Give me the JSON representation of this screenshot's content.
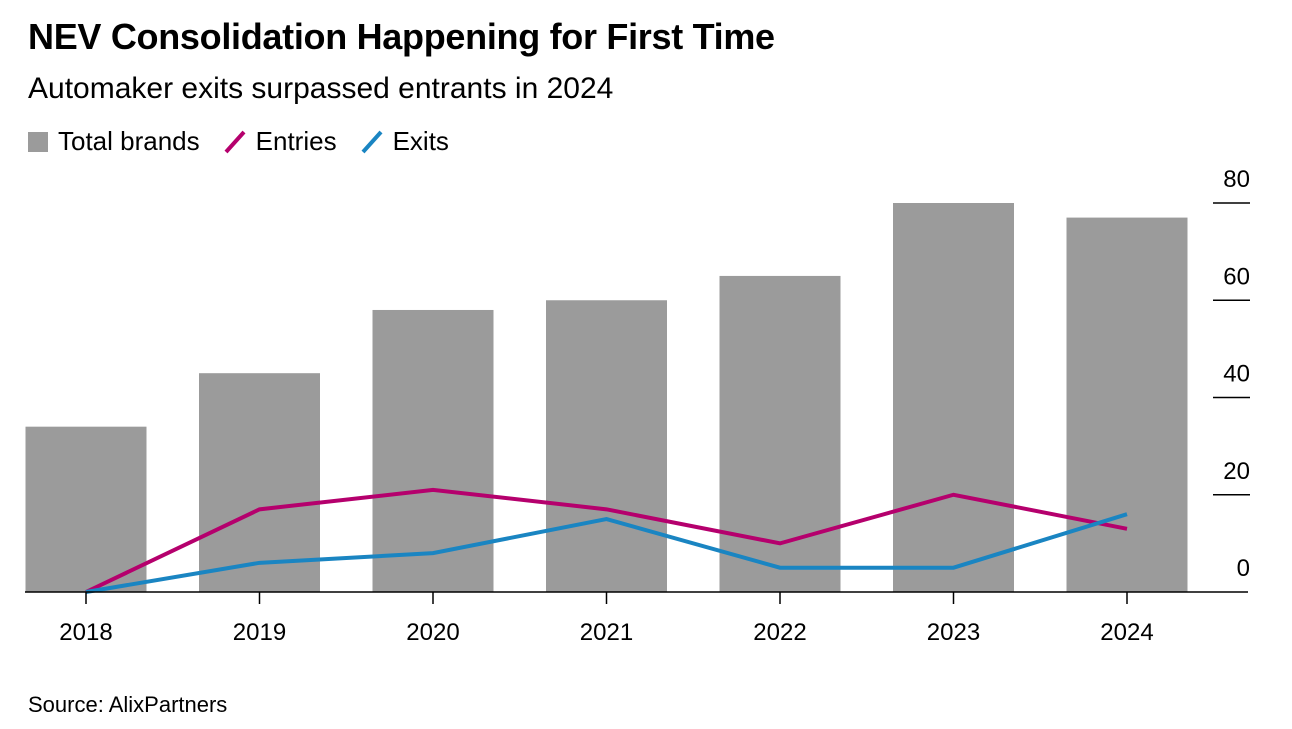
{
  "title": "NEV Consolidation Happening for First Time",
  "subtitle": "Automaker exits surpassed entrants in 2024",
  "legend": [
    {
      "label": "Total brands",
      "kind": "box",
      "color": "#9b9b9b"
    },
    {
      "label": "Entries",
      "kind": "line",
      "color": "#b5006d"
    },
    {
      "label": "Exits",
      "kind": "line",
      "color": "#1a85c2"
    }
  ],
  "source": "Source: AlixPartners",
  "chart_data": {
    "type": "bar",
    "categories": [
      "2018",
      "2019",
      "2020",
      "2021",
      "2022",
      "2023",
      "2024"
    ],
    "series": [
      {
        "name": "Total brands",
        "type": "bar",
        "color": "#9b9b9b",
        "values": [
          34,
          45,
          58,
          60,
          65,
          80,
          77
        ]
      },
      {
        "name": "Entries",
        "type": "line",
        "color": "#b5006d",
        "values": [
          0,
          17,
          21,
          17,
          10,
          20,
          13
        ]
      },
      {
        "name": "Exits",
        "type": "line",
        "color": "#1a85c2",
        "values": [
          0,
          6,
          8,
          15,
          5,
          5,
          16
        ]
      }
    ],
    "y_ticks": [
      "0",
      "20",
      "40",
      "60",
      "80"
    ],
    "ylim": [
      0,
      80
    ],
    "y_axis_side": "right",
    "grid": false,
    "legend_position": "top-left"
  }
}
